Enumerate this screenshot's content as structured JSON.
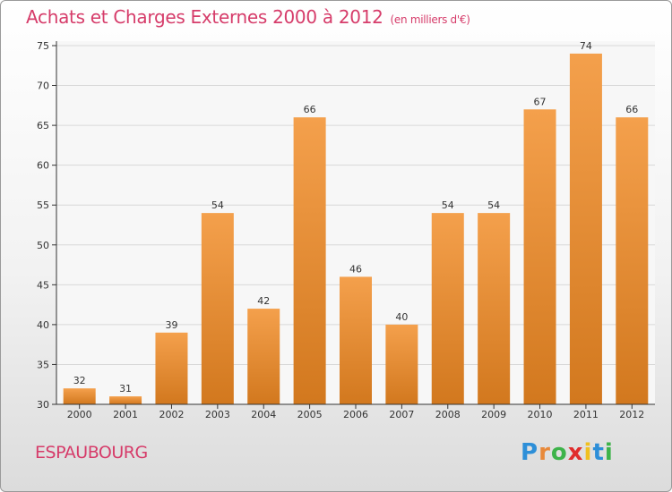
{
  "chart_data": {
    "type": "bar",
    "title": "Achats et Charges Externes 2000 à 2012",
    "subtitle": "(en milliers d'€)",
    "categories": [
      "2000",
      "2001",
      "2002",
      "2003",
      "2004",
      "2005",
      "2006",
      "2007",
      "2008",
      "2009",
      "2010",
      "2011",
      "2012"
    ],
    "values": [
      32,
      31,
      39,
      54,
      42,
      66,
      46,
      40,
      54,
      54,
      67,
      74,
      66
    ],
    "ylim": [
      30,
      75
    ],
    "yticks": [
      30,
      35,
      40,
      45,
      50,
      55,
      60,
      65,
      70,
      75
    ],
    "grid": true,
    "bar_color": "#f4a04c",
    "bar_color_dark": "#d2781e"
  },
  "location": "ESPAUBOURG",
  "brand": {
    "letters": [
      "P",
      "r",
      "o",
      "x",
      "i",
      "t",
      "i"
    ],
    "colors": [
      "#2d8fd8",
      "#e8893a",
      "#3db34a",
      "#e02d2d",
      "#f0c020",
      "#2d8fd8",
      "#3db34a"
    ]
  }
}
